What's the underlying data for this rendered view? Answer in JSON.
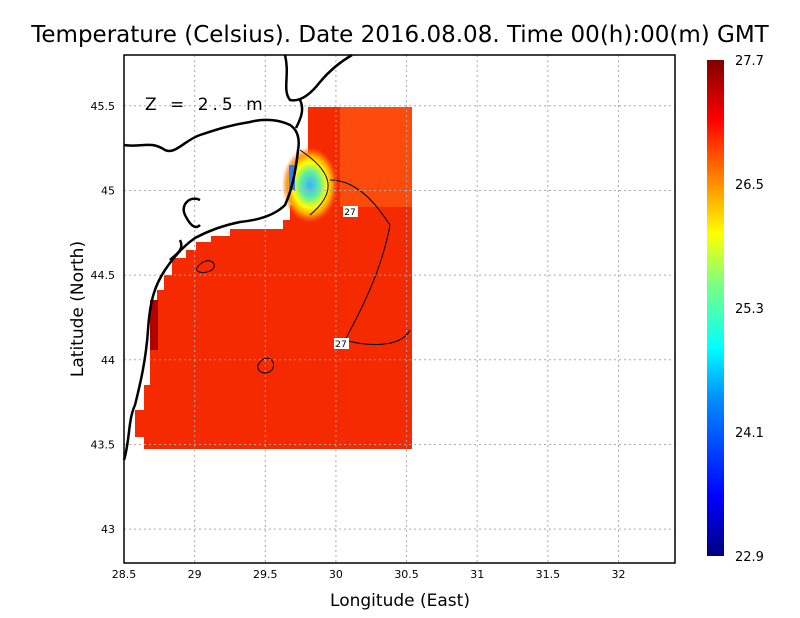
{
  "title": "Temperature (Celsius). Date 2016.08.08. Time 00(h):00(m) GMT",
  "depth_label": "Z = 2.5 m",
  "chart_data": {
    "type": "heatmap",
    "title": "Temperature (Celsius). Date 2016.08.08. Time 00(h):00(m) GMT",
    "xlabel": "Longitude (East)",
    "ylabel": "Latitude (North)",
    "xlim": [
      28.5,
      32.4
    ],
    "ylim": [
      42.8,
      45.8
    ],
    "xticks": [
      "28.5",
      "29",
      "29.5",
      "30",
      "30.5",
      "31",
      "31.5",
      "32"
    ],
    "yticks": [
      "43",
      "43.5",
      "44",
      "44.5",
      "45",
      "45.5"
    ],
    "grid": true,
    "colorbar": {
      "ticks": [
        "27.7",
        "26.5",
        "25.3",
        "24.1",
        "22.9"
      ],
      "min": 22.9,
      "max": 27.7,
      "placement": "right"
    },
    "contour_labels": [
      "27",
      "27"
    ],
    "colors": {
      "warm_dominant": "#ff2a00",
      "cold_spot": "#3cb0ff"
    }
  }
}
